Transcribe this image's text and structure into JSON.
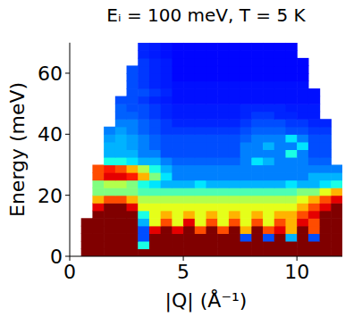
{
  "chart_data": {
    "type": "heatmap",
    "title": "Eᵢ = 100 meV,  T = 5 K",
    "x_label": "|Q| (Å⁻¹)",
    "y_label": "Energy (meV)",
    "xlim": [
      0,
      12
    ],
    "ylim": [
      0,
      70
    ],
    "xticks": [
      0,
      5,
      10
    ],
    "yticks": [
      0,
      20,
      40,
      60
    ],
    "grid": false,
    "zlim": [
      0,
      10
    ],
    "x_bins": [
      0,
      0.5,
      1,
      1.5,
      2,
      2.5,
      3,
      3.5,
      4,
      4.5,
      5,
      5.5,
      6,
      6.5,
      7,
      7.5,
      8,
      8.5,
      9,
      9.5,
      10,
      10.5,
      11,
      11.5,
      12
    ],
    "y_bins": [
      0,
      2.5,
      5,
      7.5,
      10,
      12.5,
      15,
      17.5,
      20,
      22.5,
      25,
      27.5,
      30,
      32.5,
      35,
      37.5,
      40,
      42.5,
      45,
      47.5,
      50,
      52.5,
      55,
      57.5,
      60,
      62.5,
      65,
      67.5,
      70
    ],
    "cells": [
      [
        null,
        10,
        10,
        10,
        10,
        10,
        10,
        10,
        10,
        10,
        10,
        10,
        10,
        10,
        10,
        10,
        10,
        10,
        10,
        10,
        10,
        10,
        10,
        10
      ],
      [
        null,
        10,
        10,
        10,
        10,
        10,
        4,
        10,
        10,
        10,
        10,
        10,
        10,
        10,
        10,
        10,
        10,
        10,
        10,
        10,
        10,
        10,
        10,
        10
      ],
      [
        null,
        10,
        10,
        10,
        10,
        10,
        2,
        10,
        10,
        10,
        10,
        10,
        10,
        10,
        10,
        2,
        10,
        2,
        10,
        3,
        10,
        2,
        10,
        10
      ],
      [
        null,
        10,
        10,
        10,
        10,
        10,
        2,
        9,
        10,
        9,
        10,
        8,
        10,
        8,
        10,
        7,
        10,
        8,
        9,
        7,
        10,
        8,
        10,
        10
      ],
      [
        null,
        10,
        10,
        10,
        10,
        10,
        3,
        6,
        8,
        6,
        9,
        6,
        8,
        6,
        8,
        6,
        8,
        6,
        8,
        7,
        9,
        8,
        10,
        10
      ],
      [
        null,
        null,
        10,
        10,
        10,
        10,
        4,
        6,
        7,
        6,
        7,
        6,
        7,
        6,
        7,
        6,
        7,
        6,
        7,
        7,
        8,
        9,
        10,
        10
      ],
      [
        null,
        null,
        9,
        10,
        10,
        9,
        6,
        6,
        6,
        6,
        6,
        6,
        6,
        6,
        6,
        6,
        6,
        6,
        6,
        6,
        7,
        8,
        9,
        10
      ],
      [
        null,
        null,
        7,
        8,
        8,
        7,
        5.5,
        5.5,
        5.5,
        5.5,
        5.5,
        5.5,
        5.5,
        5.5,
        5.5,
        5.5,
        5.5,
        5.5,
        5.5,
        5.5,
        6,
        7,
        8,
        9
      ],
      [
        null,
        null,
        5,
        5,
        5,
        5,
        4.5,
        4.5,
        4.5,
        4.5,
        4.5,
        4.5,
        4.5,
        4.5,
        4.5,
        4.5,
        4.5,
        4.5,
        4.5,
        4.5,
        5,
        5,
        6,
        7
      ],
      [
        null,
        null,
        5,
        5.5,
        5.5,
        5,
        4,
        3.5,
        3,
        3,
        3,
        3.5,
        3,
        3,
        3,
        3,
        3,
        3,
        3,
        3.5,
        3,
        3,
        3.5,
        4
      ],
      [
        null,
        null,
        8,
        9,
        9,
        8.5,
        7,
        5,
        3.5,
        2.5,
        2.5,
        2.5,
        2.5,
        2.5,
        2.5,
        2.5,
        2.5,
        2.5,
        2.5,
        2.5,
        2.5,
        3,
        3,
        3
      ],
      [
        null,
        null,
        8,
        8.5,
        8,
        7,
        5.5,
        4,
        3,
        2.5,
        2.5,
        2.5,
        2.5,
        2.5,
        2.5,
        2.5,
        2.5,
        2.5,
        2.5,
        2.5,
        2.5,
        2.5,
        2.5,
        2.5
      ],
      [
        null,
        null,
        null,
        4,
        4,
        3.5,
        3,
        3,
        2.5,
        2.2,
        2.2,
        2.2,
        2.2,
        2.2,
        2.2,
        2.5,
        3.5,
        3,
        2.5,
        2.5,
        2.5,
        2.2,
        2.2,
        null
      ],
      [
        null,
        null,
        null,
        3,
        3,
        3,
        2.5,
        2.5,
        2,
        2,
        2,
        2,
        2,
        2,
        2,
        2.5,
        2.5,
        2.5,
        2.5,
        4,
        2.5,
        2,
        2,
        null
      ],
      [
        null,
        null,
        null,
        3,
        3,
        2.8,
        2.5,
        2.2,
        2,
        2,
        2,
        2,
        2,
        2,
        2,
        2.5,
        2.5,
        3,
        2.5,
        2.5,
        3.5,
        2,
        2,
        null
      ],
      [
        null,
        null,
        null,
        2.8,
        3,
        2.8,
        2.5,
        2.2,
        2,
        2,
        2,
        2,
        2,
        2,
        2,
        2.2,
        2.5,
        2.5,
        2.5,
        3.5,
        2.5,
        2,
        2,
        null
      ],
      [
        null,
        null,
        null,
        2.5,
        2.8,
        2.5,
        2.2,
        2,
        1.8,
        1.8,
        1.8,
        1.8,
        1.8,
        1.8,
        1.8,
        2,
        2.2,
        2.2,
        2.2,
        2,
        2,
        1.8,
        1.8,
        null
      ],
      [
        null,
        null,
        null,
        null,
        2.5,
        2.5,
        2.2,
        2,
        1.8,
        1.6,
        1.6,
        1.6,
        1.6,
        1.6,
        1.6,
        1.8,
        2,
        2,
        2,
        1.8,
        1.8,
        1.6,
        1.6,
        null
      ],
      [
        null,
        null,
        null,
        null,
        2.2,
        2.2,
        2,
        1.8,
        1.6,
        1.5,
        1.5,
        1.5,
        1.5,
        1.5,
        1.5,
        1.6,
        1.8,
        1.8,
        1.6,
        1.6,
        1.5,
        1.5,
        null,
        null
      ],
      [
        null,
        null,
        null,
        null,
        2.2,
        2,
        2,
        1.8,
        1.6,
        1.5,
        1.5,
        1.5,
        1.5,
        1.5,
        1.5,
        1.6,
        1.6,
        1.6,
        1.6,
        1.5,
        1.5,
        1.5,
        null,
        null
      ],
      [
        null,
        null,
        null,
        null,
        2,
        2,
        1.8,
        1.6,
        1.5,
        1.4,
        1.4,
        1.4,
        1.4,
        1.4,
        1.4,
        1.4,
        1.4,
        1.4,
        1.4,
        1.4,
        1.4,
        1.4,
        null,
        null
      ],
      [
        null,
        null,
        null,
        null,
        null,
        2,
        2,
        1.8,
        1.6,
        1.4,
        1.4,
        1.4,
        1.4,
        1.4,
        1.4,
        1.4,
        1.4,
        1.4,
        1.4,
        1.4,
        1.4,
        1.4,
        null,
        null
      ],
      [
        null,
        null,
        null,
        null,
        null,
        2,
        1.8,
        1.6,
        1.5,
        1.4,
        1.4,
        1.4,
        1.4,
        1.4,
        1.4,
        1.4,
        1.4,
        1.4,
        1.4,
        1.4,
        1.4,
        null,
        null,
        null
      ],
      [
        null,
        null,
        null,
        null,
        null,
        2,
        1.8,
        1.6,
        1.5,
        1.3,
        1.3,
        1.3,
        1.3,
        1.3,
        1.3,
        1.3,
        1.3,
        1.3,
        1.3,
        1.3,
        1.3,
        null,
        null,
        null
      ],
      [
        null,
        null,
        null,
        null,
        null,
        2,
        1.8,
        1.6,
        1.5,
        1.3,
        1.3,
        1.3,
        1.3,
        1.3,
        1.3,
        1.3,
        1.3,
        1.3,
        1.3,
        1.3,
        1.3,
        null,
        null,
        null
      ],
      [
        null,
        null,
        null,
        null,
        null,
        null,
        1.8,
        1.6,
        1.5,
        1.3,
        1.3,
        1.3,
        1.3,
        1.3,
        1.3,
        1.3,
        1.3,
        1.3,
        1.3,
        1.3,
        1.3,
        null,
        null,
        null
      ],
      [
        null,
        null,
        null,
        null,
        null,
        null,
        1.6,
        1.5,
        1.4,
        1.3,
        1.3,
        1.3,
        1.3,
        1.3,
        1.3,
        1.3,
        1.3,
        1.3,
        1.3,
        1.3,
        null,
        null,
        null,
        null
      ],
      [
        null,
        null,
        null,
        null,
        null,
        null,
        1.6,
        1.5,
        1.4,
        1.3,
        1.3,
        1.3,
        1.3,
        1.3,
        1.3,
        1.3,
        1.3,
        1.3,
        1.3,
        1.3,
        null,
        null,
        null,
        null
      ]
    ]
  }
}
